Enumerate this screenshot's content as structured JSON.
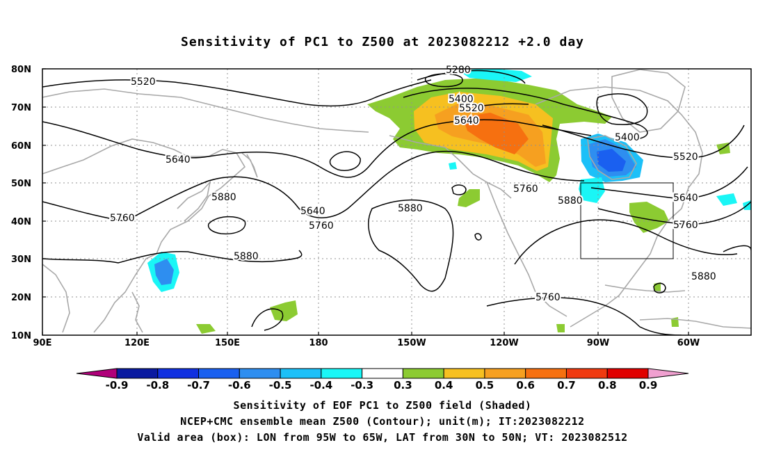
{
  "title": "Sensitivity of PC1 to Z500 at 2023082212 +2.0 day",
  "lat_labels": [
    "80N",
    "70N",
    "60N",
    "50N",
    "40N",
    "30N",
    "20N",
    "10N"
  ],
  "lon_labels": [
    "90E",
    "120E",
    "150E",
    "180",
    "150W",
    "120W",
    "90W",
    "60W"
  ],
  "contour_labels": [
    {
      "text": "5520"
    },
    {
      "text": "5280"
    },
    {
      "text": "5400"
    },
    {
      "text": "5520"
    },
    {
      "text": "5640"
    },
    {
      "text": "5400"
    },
    {
      "text": "5520"
    },
    {
      "text": "5640"
    },
    {
      "text": "5760"
    },
    {
      "text": "5640"
    },
    {
      "text": "5760"
    },
    {
      "text": "5880"
    },
    {
      "text": "5760"
    },
    {
      "text": "5880"
    },
    {
      "text": "5880"
    },
    {
      "text": "5640"
    },
    {
      "text": "5760"
    },
    {
      "text": "5880"
    },
    {
      "text": "5880"
    },
    {
      "text": "5760"
    }
  ],
  "colorbar": {
    "colors": [
      "#b0007a",
      "#0a1aa0",
      "#1030e0",
      "#1a60f0",
      "#2e8ef0",
      "#1cc0f8",
      "#1af6f6",
      "#ffffff",
      "#8ccb32",
      "#f6c020",
      "#f6a020",
      "#f67010",
      "#f03a10",
      "#e00000",
      "#f0a0d0"
    ],
    "labels": [
      "-0.9",
      "-0.8",
      "-0.7",
      "-0.6",
      "-0.5",
      "-0.4",
      "-0.3",
      "0.3",
      "0.4",
      "0.5",
      "0.6",
      "0.7",
      "0.8",
      "0.9"
    ]
  },
  "caption_lines": [
    "Sensitivity of EOF PC1 to Z500 field (Shaded)",
    "NCEP+CMC ensemble mean Z500 (Contour); unit(m); IT:2023082212",
    "Valid area (box): LON from 95W to 65W, LAT from 30N to 50N; VT: 2023082512"
  ],
  "valid_box": {
    "lon_min": -95,
    "lon_max": -65,
    "lat_min": 30,
    "lat_max": 50
  },
  "shade_colors": {
    "green": "#8ccb32",
    "yellow": "#f6c020",
    "orange": "#f6a020",
    "dark_orange": "#f67010",
    "cyan": "#1af6f6",
    "light_blue": "#1cc0f8",
    "blue": "#2e8ef0",
    "mid_blue": "#1a60f0",
    "dark_blue": "#1030e0"
  }
}
